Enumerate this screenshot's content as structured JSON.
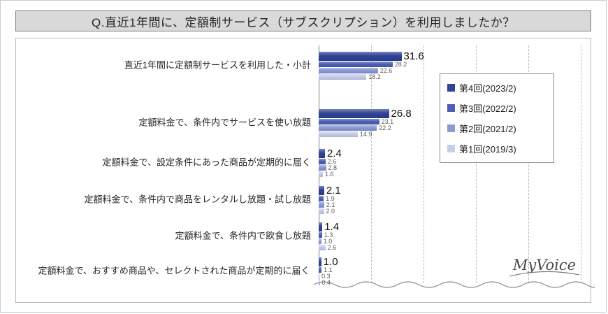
{
  "title": "Q.直近1年間に、定額制サービス（サブスクリプション）を利用しましたか？",
  "logo_text": "MyVoice",
  "colors": {
    "series": [
      "#2f4397",
      "#4d5fb3",
      "#8c99d6",
      "#c6cdec"
    ]
  },
  "chart_data": {
    "type": "bar",
    "orientation": "horizontal",
    "title": "Q.直近1年間に、定額制サービス（サブスクリプション）を利用しましたか？",
    "categories": [
      "直近1年間に定額制サービスを利用した・小計",
      "定額料金で、条件内でサービスを使い放題",
      "定額料金で、設定条件にあった商品が定期的に届く",
      "定額料金で、条件内で商品をレンタルし放題・試し放題",
      "定額料金で、条件内で飲食し放題",
      "定額料金で、おすすめ商品や、セレクトされた商品が定期的に届く"
    ],
    "series": [
      {
        "name": "第4回(2023/2)",
        "values": [
          31.6,
          26.8,
          2.4,
          2.1,
          1.4,
          1.0
        ]
      },
      {
        "name": "第3回(2022/2)",
        "values": [
          28.2,
          23.1,
          2.6,
          1.9,
          1.3,
          1.1
        ]
      },
      {
        "name": "第2回(2021/2)",
        "values": [
          22.6,
          22.2,
          2.8,
          2.1,
          1.0,
          0.3
        ]
      },
      {
        "name": "第1回(2019/3)",
        "values": [
          18.2,
          14.9,
          1.6,
          2.0,
          2.6,
          0.4
        ]
      }
    ],
    "xlim": [
      0,
      100
    ],
    "gridline_interval": 20,
    "grid": "vertical-dashed",
    "value_labels": true,
    "legend_position": "inside-upper-right",
    "axis_break_wave": true,
    "unit": "%"
  }
}
